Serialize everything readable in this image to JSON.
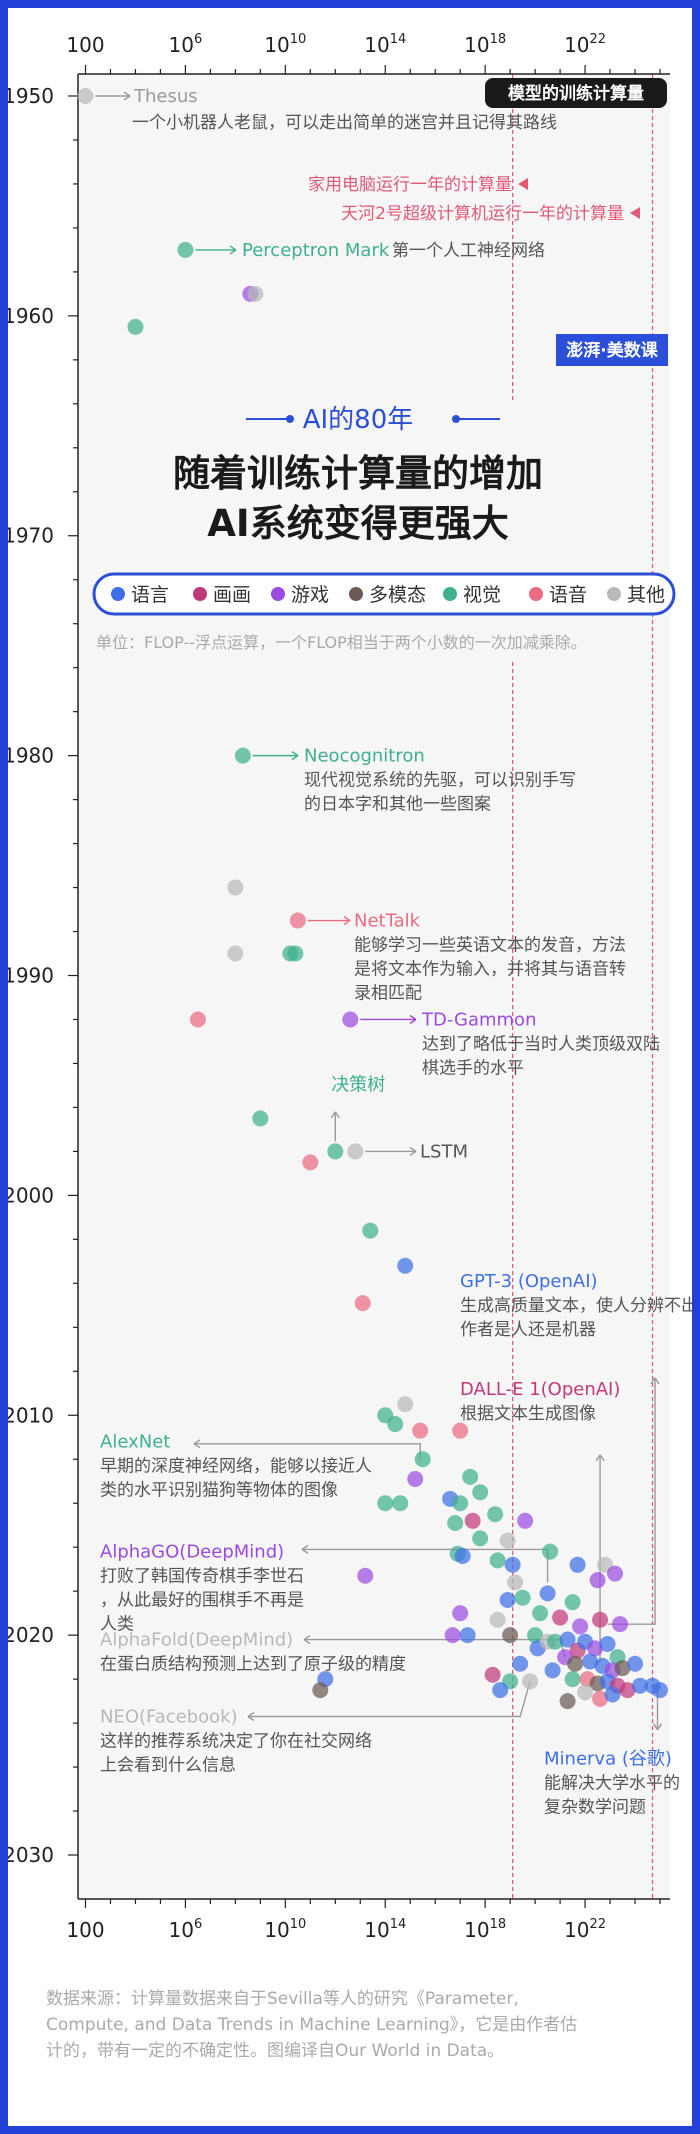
{
  "page": {
    "colors": {
      "frame": "#2340d8",
      "accent": "#2d4ed8",
      "title": "#1a1a1a",
      "subtle": "#aaaaaa"
    },
    "banner": "模型的训练计算量",
    "heading_small": "AI的80年",
    "heading_line1": "随着训练计算量的增加",
    "heading_line2": "AI系统变得更强大",
    "unit_note": "单位：FLOP--浮点运算，一个FLOP相当于两个小数的一次加减乘除。",
    "logo_text": "澎湃·美数课",
    "source_line1": "数据来源：计算量数据来自于Sevilla等人的研究《Parameter,",
    "source_line2": "Compute, and Data Trends in Machine Learning》，它是由作者估",
    "source_line3": "计的，带有一定的不确定性。图编译自Our World in Data。"
  },
  "chart_data": {
    "type": "scatter",
    "title": "模型的训练计算量",
    "x_scale": "log10",
    "x_tick_labels": [
      "100",
      "10^6",
      "10^10",
      "10^14",
      "10^18",
      "10^22"
    ],
    "xlim_log10": [
      1.7,
      25.4
    ],
    "y_ticks": [
      1950,
      1960,
      1970,
      1980,
      1990,
      2000,
      2010,
      2020,
      2030
    ],
    "ylim": [
      1949,
      2032
    ],
    "grid": false,
    "legend_position": "top-center",
    "categories": [
      {
        "key": "lang",
        "name": "语言",
        "color": "#3f6fe8"
      },
      {
        "key": "draw",
        "name": "画画",
        "color": "#c03a7a"
      },
      {
        "key": "game",
        "name": "游戏",
        "color": "#9b4be0"
      },
      {
        "key": "multi",
        "name": "多模态",
        "color": "#6b5a55"
      },
      {
        "key": "vision",
        "name": "视觉",
        "color": "#3fb08e"
      },
      {
        "key": "speech",
        "name": "语音",
        "color": "#ea6a82"
      },
      {
        "key": "other",
        "name": "其他",
        "color": "#b8b8b8"
      }
    ],
    "reference_lines": [
      {
        "label": "家用电脑运行一年的计算量",
        "x_log10": 19.1,
        "color": "#e05a78"
      },
      {
        "label": "天河2号超级计算机运行一年的计算量",
        "x_log10": 24.7,
        "color": "#e05a78"
      }
    ],
    "points": [
      {
        "x": 2,
        "y": 1950,
        "c": "other"
      },
      {
        "x": 6,
        "y": 1957,
        "c": "vision"
      },
      {
        "x": 4,
        "y": 1960.5,
        "c": "vision"
      },
      {
        "x": 8.6,
        "y": 1959,
        "c": "game"
      },
      {
        "x": 8.8,
        "y": 1959,
        "c": "other"
      },
      {
        "x": 8.3,
        "y": 1980,
        "c": "vision"
      },
      {
        "x": 8,
        "y": 1986,
        "c": "other"
      },
      {
        "x": 8,
        "y": 1989,
        "c": "other"
      },
      {
        "x": 10.5,
        "y": 1987.5,
        "c": "speech"
      },
      {
        "x": 10.2,
        "y": 1989,
        "c": "vision"
      },
      {
        "x": 10.4,
        "y": 1989,
        "c": "vision"
      },
      {
        "x": 6.5,
        "y": 1992,
        "c": "speech"
      },
      {
        "x": 12.6,
        "y": 1992,
        "c": "game"
      },
      {
        "x": 9,
        "y": 1996.5,
        "c": "vision"
      },
      {
        "x": 11,
        "y": 1998.5,
        "c": "speech"
      },
      {
        "x": 12,
        "y": 1998,
        "c": "vision"
      },
      {
        "x": 12.8,
        "y": 1998,
        "c": "other"
      },
      {
        "x": 13.4,
        "y": 2001.6,
        "c": "vision"
      },
      {
        "x": 14.8,
        "y": 2003.2,
        "c": "lang"
      },
      {
        "x": 13.1,
        "y": 2004.9,
        "c": "speech"
      },
      {
        "x": 14.8,
        "y": 2009.5,
        "c": "other"
      },
      {
        "x": 14,
        "y": 2010,
        "c": "vision"
      },
      {
        "x": 14.4,
        "y": 2010.4,
        "c": "vision"
      },
      {
        "x": 15.4,
        "y": 2010.7,
        "c": "speech"
      },
      {
        "x": 17,
        "y": 2010.7,
        "c": "speech"
      },
      {
        "x": 15.5,
        "y": 2012,
        "c": "vision"
      },
      {
        "x": 15.2,
        "y": 2012.9,
        "c": "game"
      },
      {
        "x": 14,
        "y": 2014,
        "c": "vision"
      },
      {
        "x": 14.6,
        "y": 2014,
        "c": "vision"
      },
      {
        "x": 17.4,
        "y": 2012.8,
        "c": "vision"
      },
      {
        "x": 16.6,
        "y": 2013.8,
        "c": "lang"
      },
      {
        "x": 17,
        "y": 2014,
        "c": "vision"
      },
      {
        "x": 17.8,
        "y": 2013.5,
        "c": "vision"
      },
      {
        "x": 16.8,
        "y": 2014.9,
        "c": "vision"
      },
      {
        "x": 17.5,
        "y": 2014.8,
        "c": "draw"
      },
      {
        "x": 18.4,
        "y": 2014.5,
        "c": "vision"
      },
      {
        "x": 17.8,
        "y": 2015.6,
        "c": "vision"
      },
      {
        "x": 18.9,
        "y": 2015.7,
        "c": "other"
      },
      {
        "x": 19.6,
        "y": 2014.8,
        "c": "game"
      },
      {
        "x": 16.9,
        "y": 2016.3,
        "c": "vision"
      },
      {
        "x": 17.1,
        "y": 2016.4,
        "c": "lang"
      },
      {
        "x": 18.5,
        "y": 2016.6,
        "c": "vision"
      },
      {
        "x": 13.2,
        "y": 2017.3,
        "c": "game"
      },
      {
        "x": 19.1,
        "y": 2016.8,
        "c": "lang"
      },
      {
        "x": 20.6,
        "y": 2016.2,
        "c": "vision"
      },
      {
        "x": 21.7,
        "y": 2016.8,
        "c": "lang"
      },
      {
        "x": 22.8,
        "y": 2016.8,
        "c": "other"
      },
      {
        "x": 23.2,
        "y": 2017.2,
        "c": "game"
      },
      {
        "x": 22.5,
        "y": 2017.5,
        "c": "game"
      },
      {
        "x": 18.9,
        "y": 2018.4,
        "c": "lang"
      },
      {
        "x": 19.2,
        "y": 2017.6,
        "c": "other"
      },
      {
        "x": 19.5,
        "y": 2018.3,
        "c": "vision"
      },
      {
        "x": 20.5,
        "y": 2018.1,
        "c": "lang"
      },
      {
        "x": 21.5,
        "y": 2018.5,
        "c": "vision"
      },
      {
        "x": 20.2,
        "y": 2019,
        "c": "vision"
      },
      {
        "x": 21,
        "y": 2019.2,
        "c": "draw"
      },
      {
        "x": 20,
        "y": 2020,
        "c": "vision"
      },
      {
        "x": 21.8,
        "y": 2019.6,
        "c": "game"
      },
      {
        "x": 22.6,
        "y": 2019.3,
        "c": "draw"
      },
      {
        "x": 23.4,
        "y": 2019.5,
        "c": "game"
      },
      {
        "x": 17,
        "y": 2019,
        "c": "game"
      },
      {
        "x": 16.7,
        "y": 2020,
        "c": "game"
      },
      {
        "x": 17.3,
        "y": 2020,
        "c": "lang"
      },
      {
        "x": 18.5,
        "y": 2019.3,
        "c": "other"
      },
      {
        "x": 19,
        "y": 2020,
        "c": "multi"
      },
      {
        "x": 20.1,
        "y": 2020.6,
        "c": "lang"
      },
      {
        "x": 20.5,
        "y": 2020.3,
        "c": "other"
      },
      {
        "x": 20.8,
        "y": 2020.3,
        "c": "vision"
      },
      {
        "x": 21.3,
        "y": 2020.2,
        "c": "lang"
      },
      {
        "x": 21.7,
        "y": 2020.7,
        "c": "draw"
      },
      {
        "x": 22,
        "y": 2020.3,
        "c": "lang"
      },
      {
        "x": 22.4,
        "y": 2020.6,
        "c": "game"
      },
      {
        "x": 22.9,
        "y": 2020.4,
        "c": "lang"
      },
      {
        "x": 23.3,
        "y": 2021,
        "c": "vision"
      },
      {
        "x": 21.2,
        "y": 2021,
        "c": "game"
      },
      {
        "x": 21.6,
        "y": 2021.3,
        "c": "multi"
      },
      {
        "x": 22.2,
        "y": 2021.2,
        "c": "lang"
      },
      {
        "x": 22.7,
        "y": 2021.4,
        "c": "lang"
      },
      {
        "x": 23.1,
        "y": 2021.6,
        "c": "game"
      },
      {
        "x": 23.5,
        "y": 2021.5,
        "c": "multi"
      },
      {
        "x": 24,
        "y": 2021.3,
        "c": "lang"
      },
      {
        "x": 19.4,
        "y": 2021.3,
        "c": "lang"
      },
      {
        "x": 20.7,
        "y": 2021.6,
        "c": "lang"
      },
      {
        "x": 21.5,
        "y": 2022,
        "c": "vision"
      },
      {
        "x": 22.1,
        "y": 2022,
        "c": "speech"
      },
      {
        "x": 22.5,
        "y": 2022.2,
        "c": "multi"
      },
      {
        "x": 22.9,
        "y": 2022.1,
        "c": "lang"
      },
      {
        "x": 23.3,
        "y": 2022.3,
        "c": "draw"
      },
      {
        "x": 23.7,
        "y": 2022.5,
        "c": "draw"
      },
      {
        "x": 24.2,
        "y": 2022.3,
        "c": "lang"
      },
      {
        "x": 24.7,
        "y": 2022.3,
        "c": "lang"
      },
      {
        "x": 25,
        "y": 2022.5,
        "c": "lang"
      },
      {
        "x": 22,
        "y": 2022.6,
        "c": "other"
      },
      {
        "x": 22.6,
        "y": 2022.9,
        "c": "speech"
      },
      {
        "x": 23.1,
        "y": 2022.7,
        "c": "lang"
      },
      {
        "x": 21.3,
        "y": 2023,
        "c": "multi"
      },
      {
        "x": 18.3,
        "y": 2021.8,
        "c": "draw"
      },
      {
        "x": 19,
        "y": 2022.1,
        "c": "vision"
      },
      {
        "x": 19.8,
        "y": 2022.1,
        "c": "other"
      },
      {
        "x": 18.6,
        "y": 2022.5,
        "c": "lang"
      },
      {
        "x": 11.6,
        "y": 2022,
        "c": "lang"
      },
      {
        "x": 11.4,
        "y": 2022.5,
        "c": "multi"
      }
    ],
    "annotations": [
      {
        "label": "Thesus",
        "desc": "一个小机器人老鼠，可以走出简单的迷宫并且记得其路线",
        "c": "other"
      },
      {
        "label": "Perceptron Mark",
        "desc": "第一个人工神经网络",
        "c": "vision"
      },
      {
        "label": "Neocognitron",
        "desc": "现代视觉系统的先驱，可以识别手写的日本字和其他一些图案",
        "c": "vision"
      },
      {
        "label": "NetTalk",
        "desc": "能够学习一些英语文本的发音，方法是将文本作为输入，并将其与语音转录相匹配",
        "c": "speech"
      },
      {
        "label": "TD-Gammon",
        "desc": "达到了略低于当时人类顶级双陆棋选手的水平",
        "c": "game"
      },
      {
        "label": "决策树",
        "desc": "",
        "c": "vision"
      },
      {
        "label": "LSTM",
        "desc": "",
        "c": "other"
      },
      {
        "label": "GPT-3 (OpenAI)",
        "desc": "生成高质量文本，使人分辨不出作者是人还是机器",
        "c": "lang"
      },
      {
        "label": "DALL-E 1(OpenAI)",
        "desc": "根据文本生成图像",
        "c": "draw"
      },
      {
        "label": "AlexNet",
        "desc": "早期的深度神经网络，能够以接近人类的水平识别猫狗等物体的图像",
        "c": "vision"
      },
      {
        "label": "AlphaGO(DeepMind)",
        "desc": "打败了韩国传奇棋手李世石，从此最好的围棋手不再是人类",
        "c": "game"
      },
      {
        "label": "AlphaFold(DeepMind)",
        "desc": "在蛋白质结构预测上达到了原子级的精度",
        "c": "other"
      },
      {
        "label": "NEO(Facebook)",
        "desc": "这样的推荐系统决定了你在社交网络上会看到什么信息",
        "c": "other"
      },
      {
        "label": "Minerva (谷歌)",
        "desc": "能解决大学水平的复杂数学问题",
        "c": "lang"
      }
    ]
  }
}
